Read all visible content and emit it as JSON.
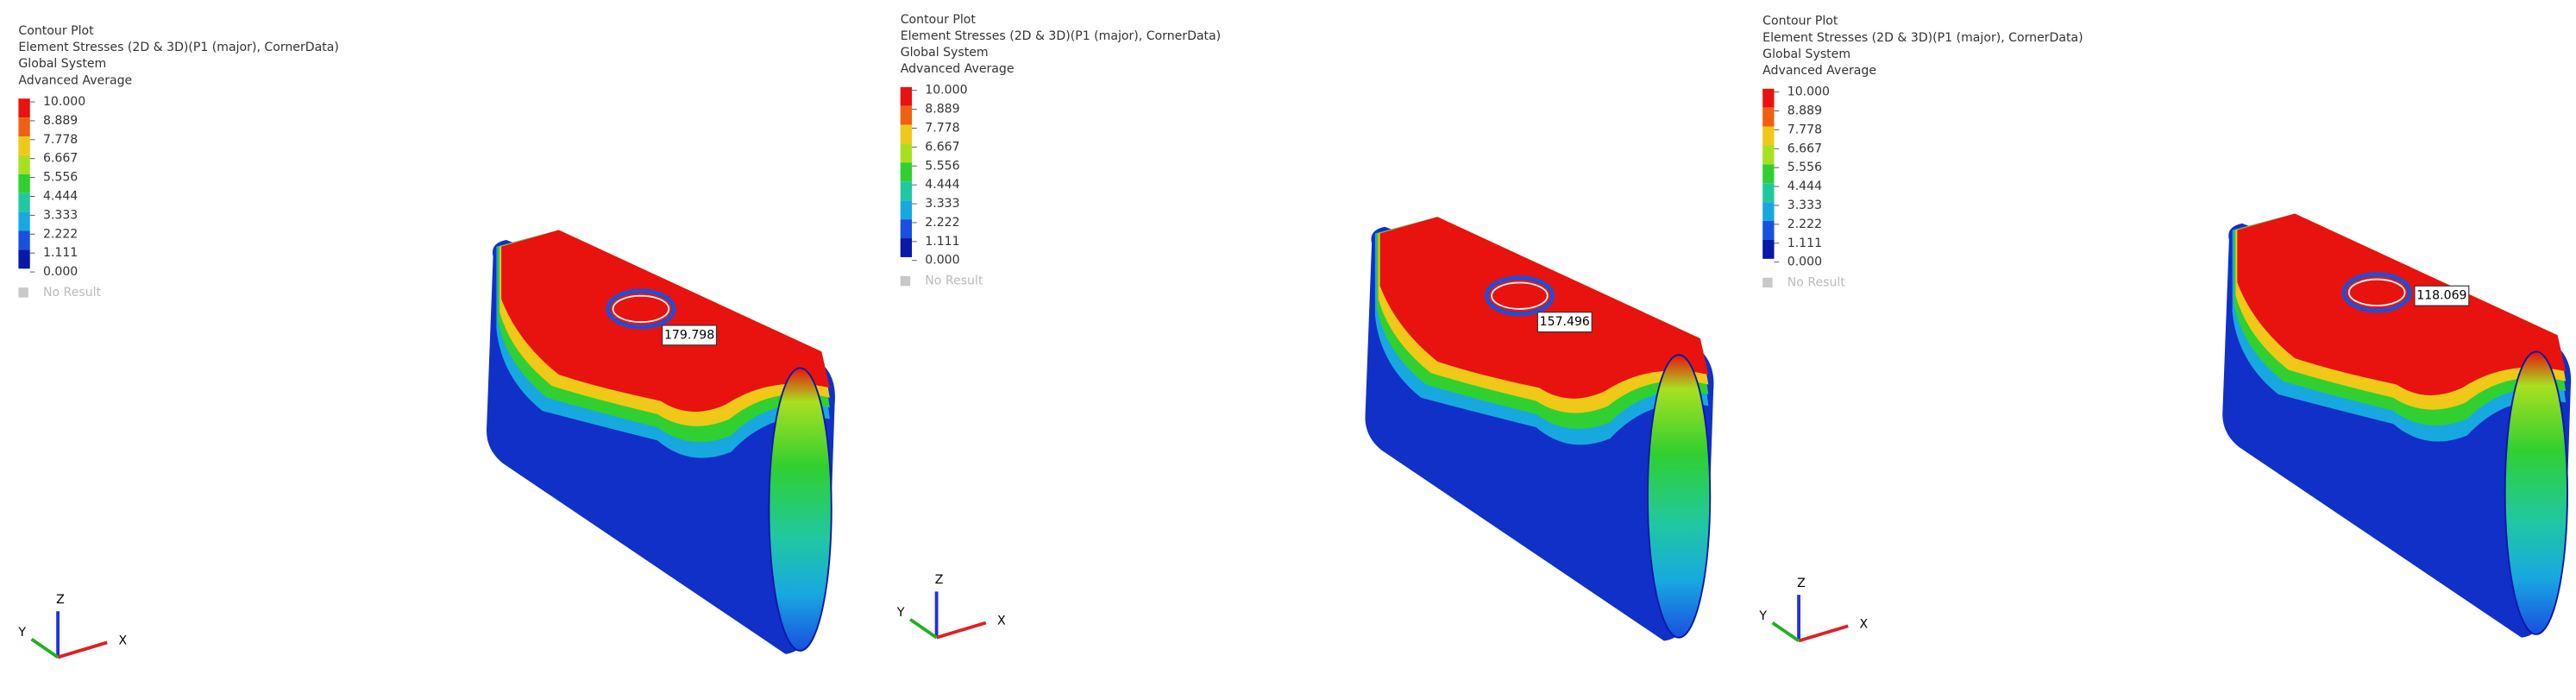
{
  "panels": [
    {
      "header": [
        "Contour Plot",
        "Element Stresses (2D & 3D)(P1 (major), CornerData)",
        "Global System",
        "Advanced Average"
      ],
      "legend": {
        "labels": [
          "10.000",
          "8.889",
          "7.778",
          "6.667",
          "5.556",
          "4.444",
          "3.333",
          "2.222",
          "1.111",
          "0.000"
        ],
        "colors": [
          "#e8120e",
          "#f06010",
          "#f0c818",
          "#a8e020",
          "#30d030",
          "#20c8a0",
          "#18a8e0",
          "#1850e0",
          "#0818a8"
        ],
        "no_result": "No Result"
      },
      "max_label": "179.798",
      "axes": {
        "x": "X",
        "y": "Y",
        "z": "Z"
      }
    },
    {
      "header": [
        "Contour Plot",
        "Element Stresses (2D & 3D)(P1 (major), CornerData)",
        "Global System",
        "Advanced Average"
      ],
      "legend": {
        "labels": [
          "10.000",
          "8.889",
          "7.778",
          "6.667",
          "5.556",
          "4.444",
          "3.333",
          "2.222",
          "1.111",
          "0.000"
        ],
        "colors": [
          "#e8120e",
          "#f06010",
          "#f0c818",
          "#a8e020",
          "#30d030",
          "#20c8a0",
          "#18a8e0",
          "#1850e0",
          "#0818a8"
        ],
        "no_result": "No Result"
      },
      "max_label": "157.496",
      "axes": {
        "x": "X",
        "y": "Y",
        "z": "Z"
      }
    },
    {
      "header": [
        "Contour Plot",
        "Element Stresses (2D & 3D)(P1 (major), CornerData)",
        "Global System",
        "Advanced Average"
      ],
      "legend": {
        "labels": [
          "10.000",
          "8.889",
          "7.778",
          "6.667",
          "5.556",
          "4.444",
          "3.333",
          "2.222",
          "1.111",
          "0.000"
        ],
        "colors": [
          "#e8120e",
          "#f06010",
          "#f0c818",
          "#a8e020",
          "#30d030",
          "#20c8a0",
          "#18a8e0",
          "#1850e0",
          "#0818a8"
        ],
        "no_result": "No Result"
      },
      "max_label": "118.069",
      "axes": {
        "x": "X",
        "y": "Y",
        "z": "Z"
      }
    }
  ]
}
